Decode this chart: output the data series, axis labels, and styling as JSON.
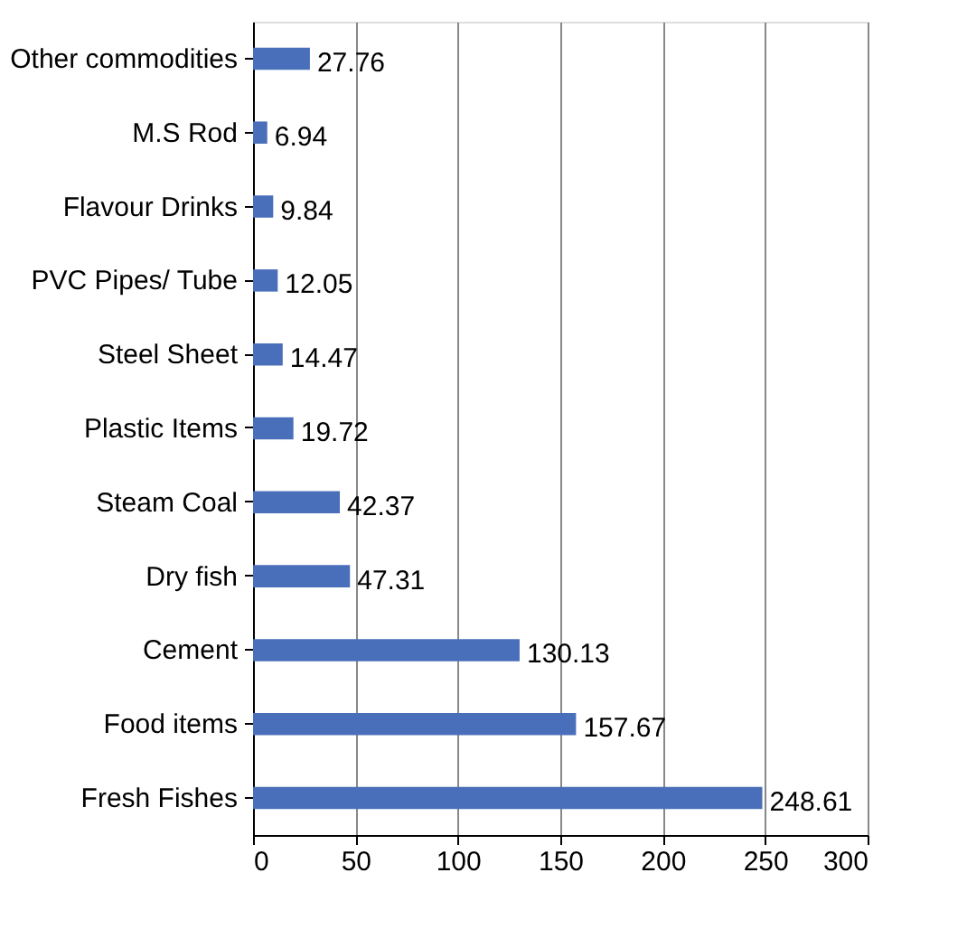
{
  "chart_data": {
    "type": "bar",
    "orientation": "horizontal",
    "categories": [
      "Other commodities",
      "M.S Rod",
      "Flavour Drinks",
      "PVC Pipes/ Tube",
      "Steel Sheet",
      "Plastic Items",
      "Steam Coal",
      "Dry fish",
      "Cement",
      "Food items",
      "Fresh Fishes"
    ],
    "values": [
      27.76,
      6.94,
      9.84,
      12.05,
      14.47,
      19.72,
      42.37,
      47.31,
      130.13,
      157.67,
      248.61
    ],
    "color": "#4a6fba",
    "xlim": [
      0,
      300
    ],
    "xticks": [
      0,
      50,
      100,
      150,
      200,
      250,
      300
    ],
    "grid": "x",
    "data_labels": true
  }
}
